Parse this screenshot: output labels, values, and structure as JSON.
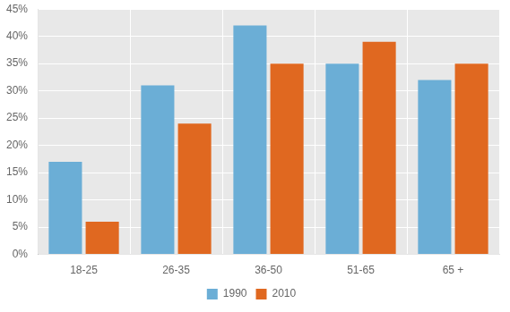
{
  "chart_data": {
    "type": "bar",
    "categories": [
      "18-25",
      "26-35",
      "36-50",
      "51-65",
      "65 +"
    ],
    "series": [
      {
        "name": "1990",
        "color": "#6BAED6",
        "values": [
          0.17,
          0.31,
          0.42,
          0.35,
          0.32
        ]
      },
      {
        "name": "2010",
        "color": "#E06820",
        "values": [
          0.06,
          0.24,
          0.35,
          0.39,
          0.35
        ]
      }
    ],
    "ylim": [
      0,
      0.45
    ],
    "yticks": [
      {
        "value": 0.0,
        "label": "0%"
      },
      {
        "value": 0.05,
        "label": "5%"
      },
      {
        "value": 0.1,
        "label": "10%"
      },
      {
        "value": 0.15,
        "label": "15%"
      },
      {
        "value": 0.2,
        "label": "20%"
      },
      {
        "value": 0.25,
        "label": "25%"
      },
      {
        "value": 0.3,
        "label": "30%"
      },
      {
        "value": 0.35,
        "label": "35%"
      },
      {
        "value": 0.4,
        "label": "40%"
      },
      {
        "value": 0.45,
        "label": "45%"
      }
    ],
    "grid": true,
    "legend": "bottom"
  }
}
